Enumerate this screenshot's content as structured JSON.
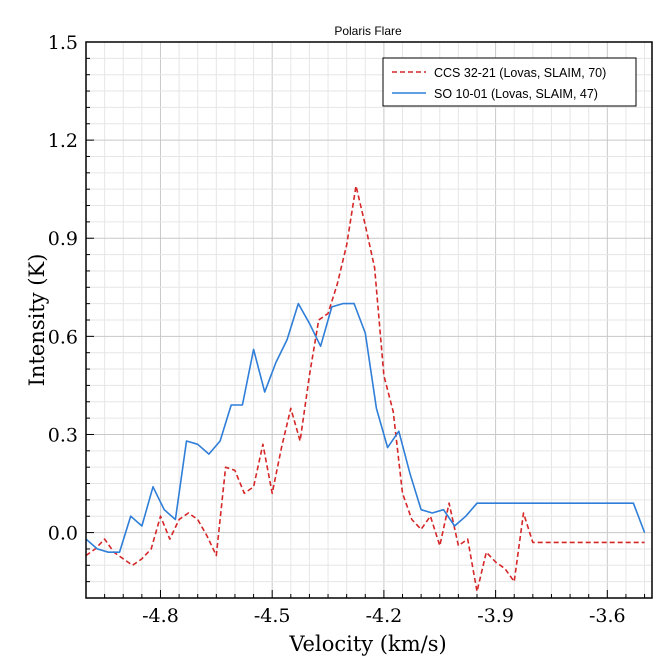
{
  "chart_data": {
    "type": "line",
    "title": "Polaris Flare",
    "xlabel": "Velocity (km/s)",
    "ylabel": "Intensity (K)",
    "xlim": [
      -5.0,
      -3.48
    ],
    "ylim": [
      -0.2,
      1.5
    ],
    "xticks": [
      -4.8,
      -4.5,
      -4.2,
      -3.9,
      -3.6
    ],
    "xtick_labels": [
      "-4.8",
      "-4.5",
      "-4.2",
      "-3.9",
      "-3.6"
    ],
    "yticks": [
      0.0,
      0.3,
      0.6,
      0.9,
      1.2,
      1.5
    ],
    "ytick_labels": [
      "0.0",
      "0.3",
      "0.6",
      "0.9",
      "1.2",
      "1.5"
    ],
    "grid": true,
    "legend_position": "top-right",
    "series": [
      {
        "name": "CCS 32-21 (Lovas, SLAIM, 70)",
        "color": "#d62728",
        "style": "dashed",
        "x": [
          -5.0,
          -4.975,
          -4.95,
          -4.925,
          -4.9,
          -4.875,
          -4.85,
          -4.825,
          -4.8,
          -4.775,
          -4.75,
          -4.725,
          -4.7,
          -4.675,
          -4.65,
          -4.625,
          -4.6,
          -4.575,
          -4.55,
          -4.525,
          -4.5,
          -4.475,
          -4.45,
          -4.425,
          -4.4,
          -4.375,
          -4.35,
          -4.325,
          -4.3,
          -4.275,
          -4.25,
          -4.225,
          -4.2,
          -4.175,
          -4.15,
          -4.125,
          -4.1,
          -4.075,
          -4.05,
          -4.025,
          -4.0,
          -3.975,
          -3.95,
          -3.925,
          -3.9,
          -3.875,
          -3.85,
          -3.825,
          -3.8,
          -3.775,
          -3.75,
          -3.725,
          -3.7,
          -3.675,
          -3.65,
          -3.625,
          -3.6,
          -3.575,
          -3.55,
          -3.525,
          -3.5
        ],
        "y": [
          -0.07,
          -0.05,
          -0.02,
          -0.06,
          -0.08,
          -0.1,
          -0.08,
          -0.05,
          0.05,
          -0.02,
          0.04,
          0.06,
          0.04,
          -0.01,
          -0.07,
          0.2,
          0.19,
          0.12,
          0.14,
          0.27,
          0.12,
          0.26,
          0.38,
          0.28,
          0.48,
          0.65,
          0.67,
          0.76,
          0.88,
          1.06,
          0.94,
          0.81,
          0.48,
          0.37,
          0.12,
          0.04,
          0.01,
          0.05,
          -0.04,
          0.09,
          -0.04,
          -0.02,
          -0.18,
          -0.06,
          -0.09,
          -0.11,
          -0.15,
          0.06,
          -0.03,
          -0.03,
          -0.03,
          -0.03,
          -0.03,
          -0.03,
          -0.03,
          -0.03,
          -0.03,
          -0.03,
          -0.03,
          -0.03,
          -0.03
        ]
      },
      {
        "name": "SO 10-01 (Lovas, SLAIM, 47)",
        "color": "#2f7ed8",
        "style": "solid",
        "x": [
          -5.0,
          -4.97,
          -4.94,
          -4.91,
          -4.88,
          -4.85,
          -4.82,
          -4.79,
          -4.76,
          -4.73,
          -4.7,
          -4.67,
          -4.64,
          -4.61,
          -4.58,
          -4.55,
          -4.52,
          -4.49,
          -4.46,
          -4.43,
          -4.4,
          -4.37,
          -4.34,
          -4.31,
          -4.28,
          -4.25,
          -4.22,
          -4.19,
          -4.16,
          -4.13,
          -4.1,
          -4.07,
          -4.04,
          -4.01,
          -3.98,
          -3.95,
          -3.92,
          -3.89,
          -3.86,
          -3.83,
          -3.8,
          -3.77,
          -3.74,
          -3.71,
          -3.68,
          -3.65,
          -3.62,
          -3.59,
          -3.56,
          -3.53,
          -3.5
        ],
        "y": [
          -0.02,
          -0.05,
          -0.06,
          -0.06,
          0.05,
          0.02,
          0.14,
          0.07,
          0.04,
          0.28,
          0.27,
          0.24,
          0.28,
          0.39,
          0.39,
          0.56,
          0.43,
          0.52,
          0.59,
          0.7,
          0.64,
          0.57,
          0.69,
          0.7,
          0.7,
          0.61,
          0.38,
          0.26,
          0.31,
          0.18,
          0.07,
          0.06,
          0.07,
          0.02,
          0.05,
          0.09,
          0.09,
          0.09,
          0.09,
          0.09,
          0.09,
          0.09,
          0.09,
          0.09,
          0.09,
          0.09,
          0.09,
          0.09,
          0.09,
          0.09,
          0.0
        ]
      }
    ]
  }
}
